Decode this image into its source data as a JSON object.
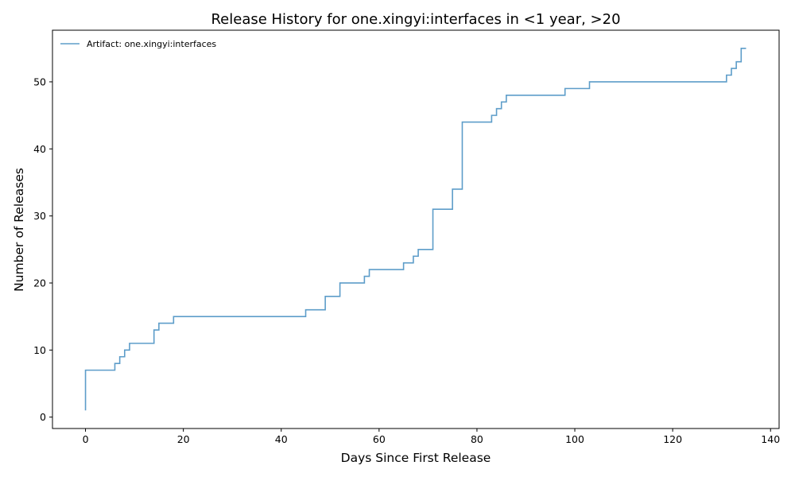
{
  "chart_data": {
    "type": "line",
    "title": "Release History for one.xingyi:interfaces in <1 year, >20",
    "xlabel": "Days Since First Release",
    "ylabel": "Number of Releases",
    "xlim": [
      -6.75,
      141.75
    ],
    "ylim": [
      -1.7,
      57.7
    ],
    "xticks": [
      0,
      20,
      40,
      60,
      80,
      100,
      120,
      140
    ],
    "yticks": [
      0,
      10,
      20,
      30,
      40,
      50
    ],
    "grid": false,
    "legend_position": "top-left",
    "step": "post",
    "series": [
      {
        "name": "Artifact: one.xingyi:interfaces",
        "color": "#1f77b4",
        "points": [
          [
            0,
            1
          ],
          [
            0,
            7
          ],
          [
            6,
            8
          ],
          [
            7,
            9
          ],
          [
            8,
            10
          ],
          [
            9,
            11
          ],
          [
            14,
            13
          ],
          [
            15,
            14
          ],
          [
            18,
            15
          ],
          [
            45,
            16
          ],
          [
            49,
            18
          ],
          [
            52,
            20
          ],
          [
            57,
            21
          ],
          [
            58,
            22
          ],
          [
            65,
            23
          ],
          [
            67,
            24
          ],
          [
            68,
            25
          ],
          [
            71,
            31
          ],
          [
            75,
            34
          ],
          [
            77,
            44
          ],
          [
            83,
            45
          ],
          [
            84,
            46
          ],
          [
            85,
            47
          ],
          [
            86,
            48
          ],
          [
            98,
            49
          ],
          [
            103,
            50
          ],
          [
            131,
            51
          ],
          [
            132,
            52
          ],
          [
            133,
            53
          ],
          [
            134,
            55
          ],
          [
            135,
            55
          ]
        ]
      }
    ]
  }
}
